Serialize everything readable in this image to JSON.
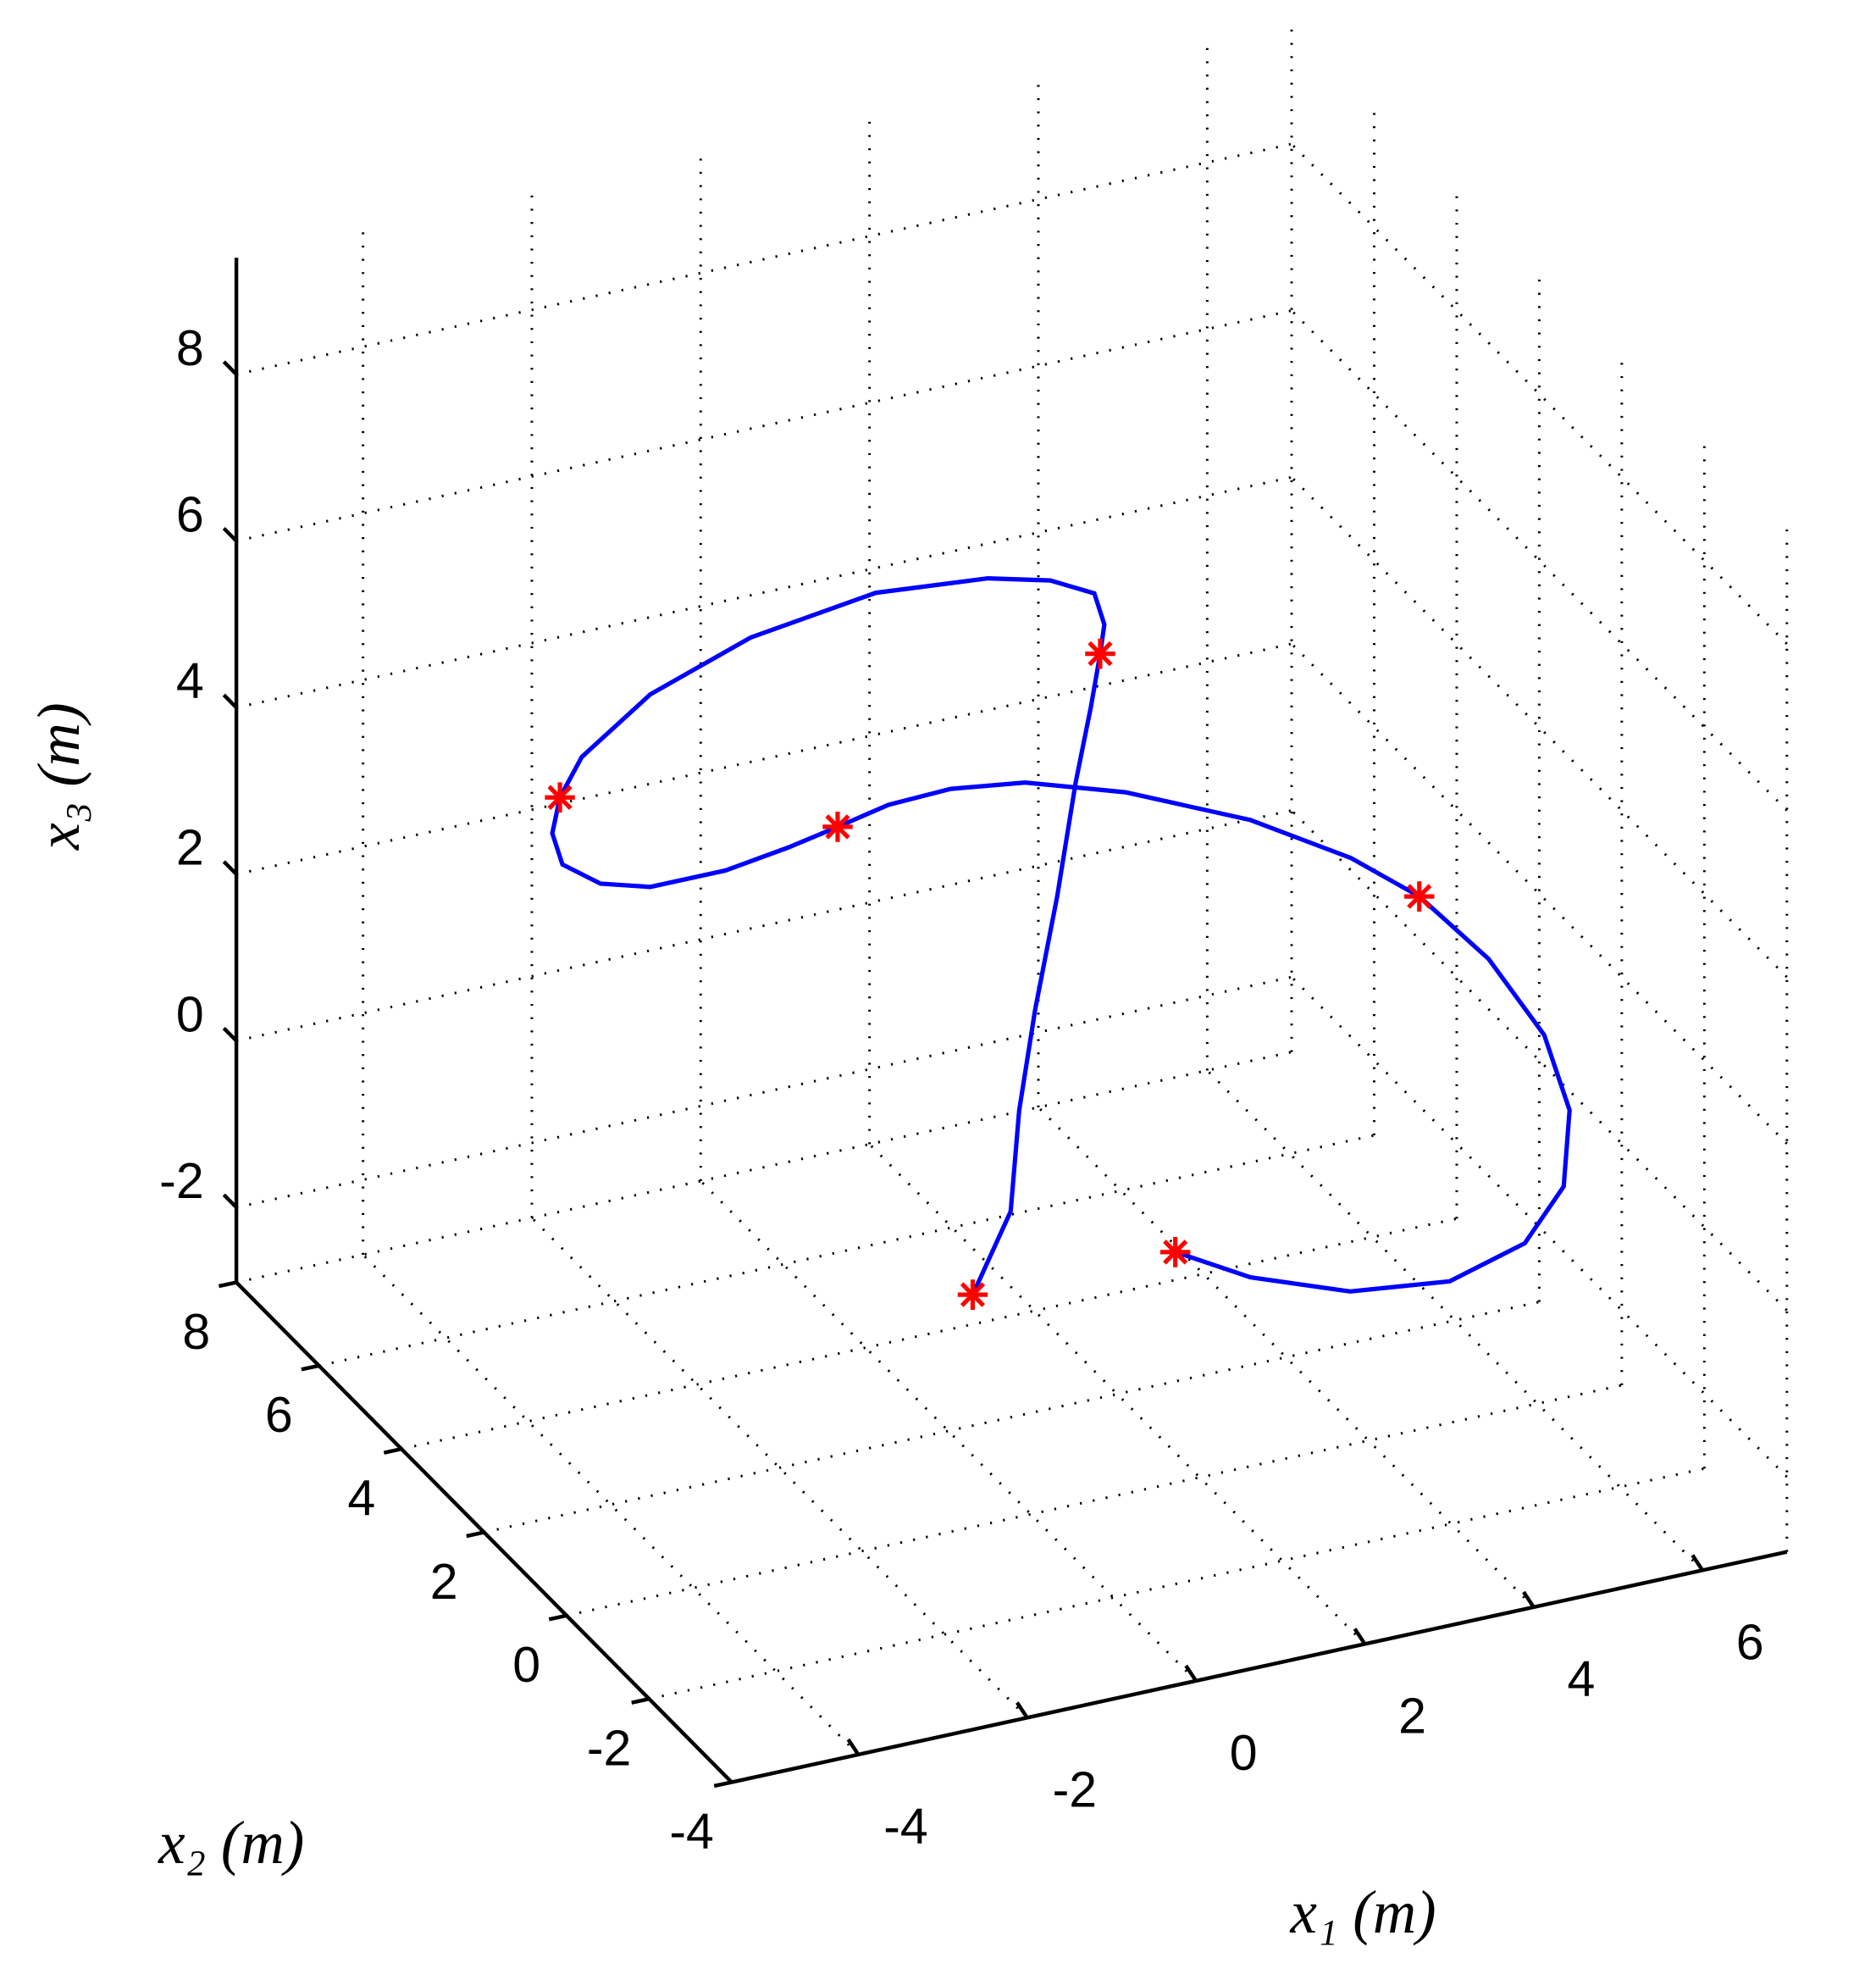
{
  "chart_data": {
    "type": "line3d",
    "xlabel": "x₁ (m)",
    "ylabel": "x₂ (m)",
    "zlabel": "x₃ (m)",
    "xlim": [
      -5.5,
      7
    ],
    "ylim": [
      -4,
      8
    ],
    "zlim": [
      -2.9,
      9.4
    ],
    "xticks": [
      -4,
      -2,
      0,
      2,
      4,
      6
    ],
    "yticks": [
      -4,
      -2,
      0,
      2,
      4,
      6,
      8
    ],
    "zticks": [
      -2,
      0,
      2,
      4,
      6,
      8
    ],
    "grid": true,
    "series": [
      {
        "color": "#0000ff",
        "marker": "none",
        "x": [
          -0.2,
          0.25,
          0.35,
          0.54,
          0.8,
          1.02,
          1.2,
          1.31,
          1.36,
          1.24,
          0.72,
          -0.02,
          -1.35,
          -2.83,
          -4.02,
          -4.83,
          -5.09,
          -5.18,
          -5.06,
          -4.61,
          -4.02,
          -3.13,
          -2.39,
          -1.8,
          -1.2,
          -0.46,
          0.42,
          1.61,
          3.09,
          4.28,
          5.09,
          5.91,
          6.57,
          6.87,
          6.8,
          6.34,
          5.45,
          4.27,
          3.09,
          2.2
        ],
        "y": [
          1,
          1,
          1,
          1,
          1,
          1,
          1,
          1,
          1,
          1,
          1,
          1,
          1,
          1,
          1,
          1,
          1,
          1,
          1,
          1,
          1,
          1,
          1,
          1,
          1,
          1,
          1,
          1,
          1,
          1,
          1,
          1,
          1,
          1,
          1,
          1,
          1,
          1,
          1,
          1
        ],
        "z": [
          -0.72,
          0.18,
          1.37,
          2.54,
          3.84,
          5.16,
          6.03,
          6.64,
          6.98,
          7.38,
          7.65,
          7.84,
          7.96,
          7.75,
          7.33,
          6.76,
          6.33,
          5.92,
          5.52,
          5.19,
          5.02,
          5.02,
          5.13,
          5.25,
          5.38,
          5.41,
          5.29,
          4.91,
          4.25,
          3.53,
          2.89,
          1.96,
          0.9,
          -0.07,
          -0.97,
          -1.55,
          -1.81,
          -1.67,
          -1.24,
          -0.74
        ]
      },
      {
        "color": "#ff0000",
        "marker": "*",
        "x": [
          -0.2,
          1.31,
          -5.09,
          -1.8,
          5.09,
          2.2
        ],
        "y": [
          1,
          1,
          1,
          1,
          1,
          1
        ],
        "z": [
          -0.72,
          6.64,
          6.33,
          5.25,
          2.89,
          -0.74
        ]
      }
    ]
  }
}
